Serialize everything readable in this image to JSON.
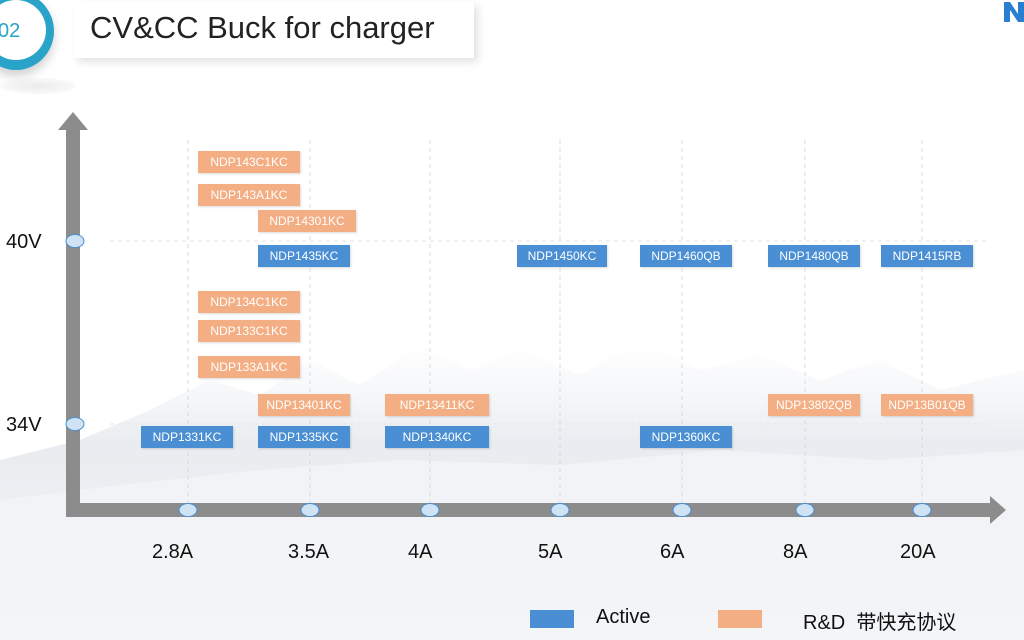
{
  "header": {
    "section_number": "02",
    "title": "CV&CC Buck for charger"
  },
  "colors": {
    "active": "#4a8fd4",
    "rd": "#f4ae83",
    "accent": "#29a3c7",
    "axis": "#8c8c8c"
  },
  "chart_data": {
    "type": "scatter",
    "title": "",
    "xlabel": "",
    "ylabel": "",
    "x_categories": [
      "2.8A",
      "3.5A",
      "4A",
      "5A",
      "6A",
      "8A",
      "20A"
    ],
    "y_categories": [
      "34V",
      "40V"
    ],
    "grid": true,
    "legend_position": "bottom-center",
    "legend": [
      {
        "name": "Active",
        "color": "#4a8fd4"
      },
      {
        "name": "R&D  带快充协议",
        "color": "#f4ae83"
      }
    ],
    "parts": [
      {
        "name": "NDP143C1KC",
        "x": "3.5A",
        "y": "40V",
        "series": "R&D",
        "stack": 5
      },
      {
        "name": "NDP143A1KC",
        "x": "3.5A",
        "y": "40V",
        "series": "R&D",
        "stack": 4
      },
      {
        "name": "NDP14301KC",
        "x": "3.5A",
        "y": "40V",
        "series": "R&D",
        "stack": 3
      },
      {
        "name": "NDP1435KC",
        "x": "3.5A",
        "y": "40V",
        "series": "Active",
        "stack": 2
      },
      {
        "name": "NDP1450KC",
        "x": "5A",
        "y": "40V",
        "series": "Active",
        "stack": 2
      },
      {
        "name": "NDP1460QB",
        "x": "6A",
        "y": "40V",
        "series": "Active",
        "stack": 2
      },
      {
        "name": "NDP1480QB",
        "x": "8A",
        "y": "40V",
        "series": "Active",
        "stack": 2
      },
      {
        "name": "NDP1415RB",
        "x": "20A",
        "y": "40V",
        "series": "Active",
        "stack": 2
      },
      {
        "name": "NDP134C1KC",
        "x": "3.5A",
        "y": "34V",
        "series": "R&D",
        "stack": 5
      },
      {
        "name": "NDP133C1KC",
        "x": "3.5A",
        "y": "34V",
        "series": "R&D",
        "stack": 4
      },
      {
        "name": "NDP133A1KC",
        "x": "3.5A",
        "y": "34V",
        "series": "R&D",
        "stack": 3
      },
      {
        "name": "NDP13401KC",
        "x": "3.5A",
        "y": "34V",
        "series": "R&D",
        "stack": 2
      },
      {
        "name": "NDP13411KC",
        "x": "4A",
        "y": "34V",
        "series": "R&D",
        "stack": 2
      },
      {
        "name": "NDP13802QB",
        "x": "8A",
        "y": "34V",
        "series": "R&D",
        "stack": 2
      },
      {
        "name": "NDP13B01QB",
        "x": "20A",
        "y": "34V",
        "series": "R&D",
        "stack": 2
      },
      {
        "name": "NDP1331KC",
        "x": "2.8A",
        "y": "34V",
        "series": "Active",
        "stack": 1
      },
      {
        "name": "NDP1335KC",
        "x": "3.5A",
        "y": "34V",
        "series": "Active",
        "stack": 1
      },
      {
        "name": "NDP1340KC",
        "x": "4A",
        "y": "34V",
        "series": "Active",
        "stack": 1
      },
      {
        "name": "NDP1360KC",
        "x": "6A",
        "y": "34V",
        "series": "Active",
        "stack": 1
      }
    ]
  }
}
